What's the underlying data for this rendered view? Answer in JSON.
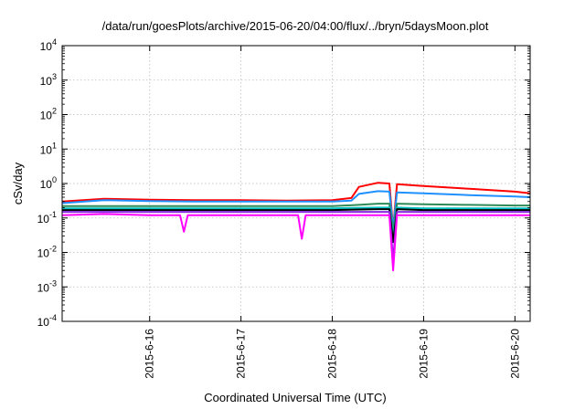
{
  "chart_data": {
    "type": "line",
    "title": "/data/run/goesPlots/archive/2015-06-20/04:00/flux/../bryn/5daysMoon.plot",
    "xlabel": "Coordinated Universal Time (UTC)",
    "ylabel": "cSv/day",
    "yscale": "log",
    "ylim": [
      0.0001,
      10000
    ],
    "xlim": [
      "2015-06-15T01:00",
      "2015-06-20T04:00"
    ],
    "grid": true,
    "y_ticks": [
      {
        "value": 0.0001,
        "base": "10",
        "exp": "-4"
      },
      {
        "value": 0.001,
        "base": "10",
        "exp": "-3"
      },
      {
        "value": 0.01,
        "base": "10",
        "exp": "-2"
      },
      {
        "value": 0.1,
        "base": "10",
        "exp": "-1"
      },
      {
        "value": 1,
        "base": "10",
        "exp": "0"
      },
      {
        "value": 10,
        "base": "10",
        "exp": "1"
      },
      {
        "value": 100,
        "base": "10",
        "exp": "2"
      },
      {
        "value": 1000,
        "base": "10",
        "exp": "3"
      },
      {
        "value": 10000,
        "base": "10",
        "exp": "4"
      }
    ],
    "x_ticks": [
      {
        "value": "2015-06-16T00:00",
        "label": "2015-6-16"
      },
      {
        "value": "2015-06-17T00:00",
        "label": "2015-6-17"
      },
      {
        "value": "2015-06-18T00:00",
        "label": "2015-6-18"
      },
      {
        "value": "2015-06-19T00:00",
        "label": "2015-6-19"
      },
      {
        "value": "2015-06-20T00:00",
        "label": "2015-6-20"
      }
    ],
    "series": [
      {
        "color": "#ff0000",
        "points": [
          [
            "2015-06-15T01:00",
            0.3
          ],
          [
            "2015-06-15T12:00",
            0.36
          ],
          [
            "2015-06-16T00:00",
            0.34
          ],
          [
            "2015-06-16T12:00",
            0.33
          ],
          [
            "2015-06-17T00:00",
            0.33
          ],
          [
            "2015-06-17T12:00",
            0.32
          ],
          [
            "2015-06-18T00:00",
            0.33
          ],
          [
            "2015-06-18T05:00",
            0.38
          ],
          [
            "2015-06-18T07:00",
            0.8
          ],
          [
            "2015-06-18T12:00",
            1.05
          ],
          [
            "2015-06-18T15:00",
            1.0
          ],
          [
            "2015-06-18T16:00",
            0.05
          ],
          [
            "2015-06-18T17:00",
            0.95
          ],
          [
            "2015-06-19T00:00",
            0.85
          ],
          [
            "2015-06-19T12:00",
            0.7
          ],
          [
            "2015-06-20T00:00",
            0.58
          ],
          [
            "2015-06-20T04:00",
            0.52
          ]
        ]
      },
      {
        "color": "#1e90ff",
        "points": [
          [
            "2015-06-15T01:00",
            0.27
          ],
          [
            "2015-06-15T12:00",
            0.33
          ],
          [
            "2015-06-16T00:00",
            0.31
          ],
          [
            "2015-06-16T12:00",
            0.3
          ],
          [
            "2015-06-17T00:00",
            0.3
          ],
          [
            "2015-06-17T12:00",
            0.3
          ],
          [
            "2015-06-18T00:00",
            0.3
          ],
          [
            "2015-06-18T05:00",
            0.32
          ],
          [
            "2015-06-18T07:00",
            0.5
          ],
          [
            "2015-06-18T12:00",
            0.6
          ],
          [
            "2015-06-18T15:00",
            0.58
          ],
          [
            "2015-06-18T16:00",
            0.05
          ],
          [
            "2015-06-18T17:00",
            0.55
          ],
          [
            "2015-06-19T00:00",
            0.52
          ],
          [
            "2015-06-19T12:00",
            0.46
          ],
          [
            "2015-06-20T00:00",
            0.42
          ],
          [
            "2015-06-20T04:00",
            0.4
          ]
        ]
      },
      {
        "color": "#2e8b57",
        "points": [
          [
            "2015-06-15T01:00",
            0.22
          ],
          [
            "2015-06-15T12:00",
            0.22
          ],
          [
            "2015-06-16T00:00",
            0.22
          ],
          [
            "2015-06-16T12:00",
            0.22
          ],
          [
            "2015-06-17T00:00",
            0.22
          ],
          [
            "2015-06-17T12:00",
            0.22
          ],
          [
            "2015-06-18T00:00",
            0.22
          ],
          [
            "2015-06-18T07:00",
            0.24
          ],
          [
            "2015-06-18T12:00",
            0.26
          ],
          [
            "2015-06-18T15:00",
            0.26
          ],
          [
            "2015-06-18T16:00",
            0.04
          ],
          [
            "2015-06-18T17:00",
            0.26
          ],
          [
            "2015-06-19T00:00",
            0.25
          ],
          [
            "2015-06-19T12:00",
            0.24
          ],
          [
            "2015-06-20T00:00",
            0.23
          ],
          [
            "2015-06-20T04:00",
            0.23
          ]
        ]
      },
      {
        "color": "#00c0c0",
        "points": [
          [
            "2015-06-15T01:00",
            0.19
          ],
          [
            "2015-06-15T12:00",
            0.19
          ],
          [
            "2015-06-16T00:00",
            0.19
          ],
          [
            "2015-06-16T12:00",
            0.19
          ],
          [
            "2015-06-17T00:00",
            0.19
          ],
          [
            "2015-06-17T12:00",
            0.19
          ],
          [
            "2015-06-18T00:00",
            0.19
          ],
          [
            "2015-06-18T12:00",
            0.2
          ],
          [
            "2015-06-18T15:00",
            0.2
          ],
          [
            "2015-06-18T16:00",
            0.03
          ],
          [
            "2015-06-18T17:00",
            0.2
          ],
          [
            "2015-06-19T00:00",
            0.19
          ],
          [
            "2015-06-20T00:00",
            0.19
          ],
          [
            "2015-06-20T04:00",
            0.19
          ]
        ]
      },
      {
        "color": "#000000",
        "points": [
          [
            "2015-06-15T01:00",
            0.17
          ],
          [
            "2015-06-15T12:00",
            0.17
          ],
          [
            "2015-06-16T00:00",
            0.17
          ],
          [
            "2015-06-16T12:00",
            0.17
          ],
          [
            "2015-06-17T00:00",
            0.17
          ],
          [
            "2015-06-17T12:00",
            0.17
          ],
          [
            "2015-06-18T00:00",
            0.17
          ],
          [
            "2015-06-18T12:00",
            0.18
          ],
          [
            "2015-06-18T15:00",
            0.18
          ],
          [
            "2015-06-18T16:00",
            0.02
          ],
          [
            "2015-06-18T17:00",
            0.18
          ],
          [
            "2015-06-19T00:00",
            0.17
          ],
          [
            "2015-06-20T00:00",
            0.17
          ],
          [
            "2015-06-20T04:00",
            0.17
          ]
        ]
      },
      {
        "color": "#8a2be2",
        "points": [
          [
            "2015-06-15T01:00",
            0.15
          ],
          [
            "2015-06-15T12:00",
            0.15
          ],
          [
            "2015-06-16T00:00",
            0.15
          ],
          [
            "2015-06-16T12:00",
            0.15
          ],
          [
            "2015-06-17T00:00",
            0.15
          ],
          [
            "2015-06-17T12:00",
            0.15
          ],
          [
            "2015-06-18T00:00",
            0.15
          ],
          [
            "2015-06-18T12:00",
            0.15
          ],
          [
            "2015-06-18T15:00",
            0.15
          ],
          [
            "2015-06-18T16:00",
            0.006
          ],
          [
            "2015-06-18T17:00",
            0.15
          ],
          [
            "2015-06-19T00:00",
            0.15
          ],
          [
            "2015-06-20T00:00",
            0.15
          ],
          [
            "2015-06-20T04:00",
            0.15
          ]
        ]
      },
      {
        "color": "#ff00ff",
        "points": [
          [
            "2015-06-15T01:00",
            0.12
          ],
          [
            "2015-06-15T12:00",
            0.13
          ],
          [
            "2015-06-16T00:00",
            0.12
          ],
          [
            "2015-06-16T08:00",
            0.12
          ],
          [
            "2015-06-16T09:00",
            0.04
          ],
          [
            "2015-06-16T10:00",
            0.12
          ],
          [
            "2015-06-16T12:00",
            0.12
          ],
          [
            "2015-06-17T00:00",
            0.12
          ],
          [
            "2015-06-17T15:00",
            0.12
          ],
          [
            "2015-06-17T16:00",
            0.025
          ],
          [
            "2015-06-17T17:00",
            0.12
          ],
          [
            "2015-06-18T00:00",
            0.12
          ],
          [
            "2015-06-18T12:00",
            0.12
          ],
          [
            "2015-06-18T15:00",
            0.12
          ],
          [
            "2015-06-18T16:00",
            0.003
          ],
          [
            "2015-06-18T17:00",
            0.12
          ],
          [
            "2015-06-19T00:00",
            0.12
          ],
          [
            "2015-06-20T00:00",
            0.12
          ],
          [
            "2015-06-20T04:00",
            0.12
          ]
        ]
      }
    ]
  }
}
